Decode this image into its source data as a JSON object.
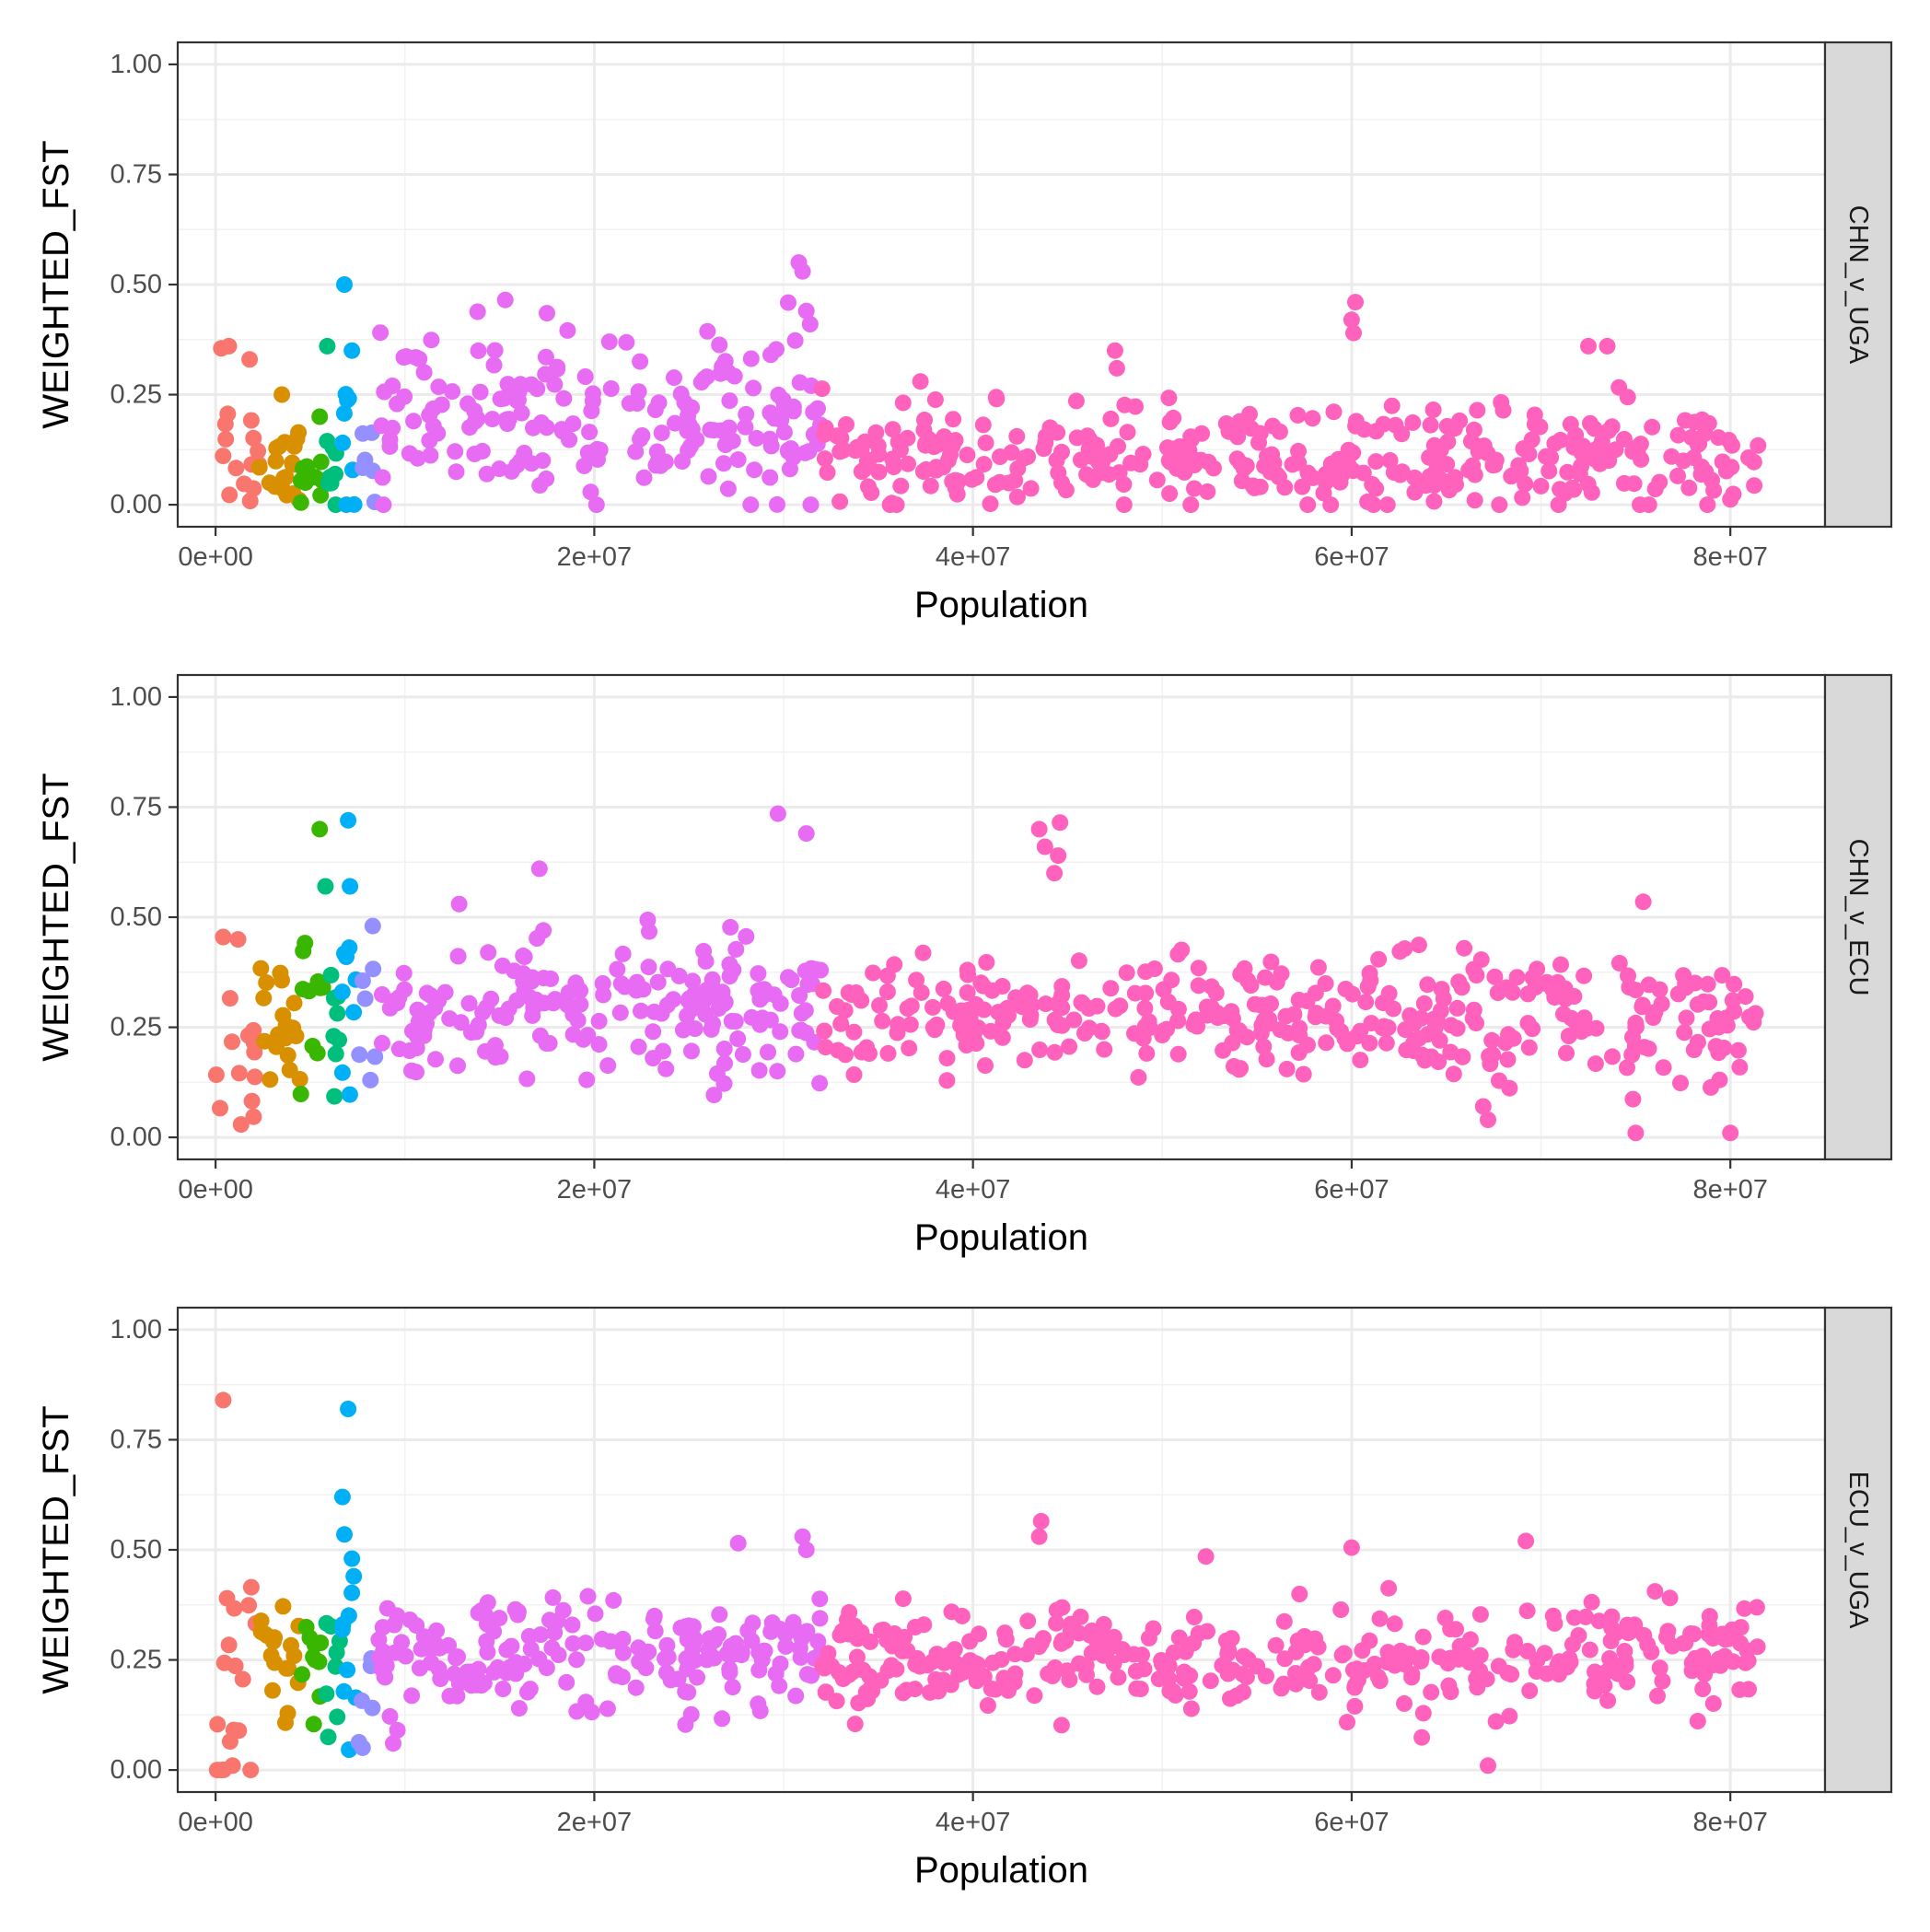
{
  "chart_data": [
    {
      "type": "scatter",
      "facet": "CHN_v_UGA",
      "xlabel": "Population",
      "ylabel": "WEIGHTED_FST",
      "xlim": [
        -2000000,
        85000000
      ],
      "ylim": [
        -0.05,
        1.05
      ],
      "x_ticks": [
        0,
        20000000,
        40000000,
        60000000,
        80000000
      ],
      "x_tick_labels": [
        "0e+00",
        "2e+07",
        "4e+07",
        "6e+07",
        "8e+07"
      ],
      "y_ticks": [
        0,
        0.25,
        0.5,
        0.75,
        1
      ],
      "y_tick_labels": [
        "0.00",
        "0.25",
        "0.50",
        "0.75",
        "1.00"
      ],
      "grid": true,
      "color_by": "chromosome",
      "segments": [
        {
          "x_start": 0,
          "x_end": 2300000,
          "color": "#f8766d",
          "mean": 0.12,
          "sd": 0.07,
          "n": 14
        },
        {
          "x_start": 2300000,
          "x_end": 4500000,
          "color": "#d89000",
          "mean": 0.1,
          "sd": 0.05,
          "n": 18
        },
        {
          "x_start": 4500000,
          "x_end": 5800000,
          "color": "#39b600",
          "mean": 0.07,
          "sd": 0.04,
          "n": 10
        },
        {
          "x_start": 5800000,
          "x_end": 6600000,
          "color": "#00bf7d",
          "mean": 0.09,
          "sd": 0.05,
          "n": 8
        },
        {
          "x_start": 6600000,
          "x_end": 7500000,
          "color": "#00b0f6",
          "mean": 0.12,
          "sd": 0.08,
          "n": 8
        },
        {
          "x_start": 7500000,
          "x_end": 8600000,
          "color": "#9590ff",
          "mean": 0.1,
          "sd": 0.06,
          "n": 6
        },
        {
          "x_start": 8600000,
          "x_end": 32000000,
          "color": "#e76bf3",
          "mean": 0.2,
          "sd": 0.09,
          "n": 190
        },
        {
          "x_start": 32000000,
          "x_end": 81500000,
          "color": "#ff62bc",
          "mean": 0.1,
          "sd": 0.06,
          "n": 360
        }
      ],
      "highlights": [
        {
          "x": 300000,
          "y": 0.355
        },
        {
          "x": 700000,
          "y": 0.36
        },
        {
          "x": 1800000,
          "y": 0.33
        },
        {
          "x": 3500000,
          "y": 0.25
        },
        {
          "x": 5500000,
          "y": 0.2
        },
        {
          "x": 5900000,
          "y": 0.36
        },
        {
          "x": 6800000,
          "y": 0.5
        },
        {
          "x": 7200000,
          "y": 0.35
        },
        {
          "x": 15300000,
          "y": 0.465
        },
        {
          "x": 17500000,
          "y": 0.435
        },
        {
          "x": 30800000,
          "y": 0.55
        },
        {
          "x": 31000000,
          "y": 0.53
        },
        {
          "x": 31200000,
          "y": 0.44
        },
        {
          "x": 31400000,
          "y": 0.41
        },
        {
          "x": 47500000,
          "y": 0.35
        },
        {
          "x": 47600000,
          "y": 0.31
        },
        {
          "x": 60200000,
          "y": 0.46
        },
        {
          "x": 60000000,
          "y": 0.42
        },
        {
          "x": 60100000,
          "y": 0.39
        },
        {
          "x": 72500000,
          "y": 0.36
        },
        {
          "x": 73500000,
          "y": 0.36
        }
      ]
    },
    {
      "type": "scatter",
      "facet": "CHN_v_ECU",
      "xlabel": "Population",
      "ylabel": "WEIGHTED_FST",
      "xlim": [
        -2000000,
        85000000
      ],
      "ylim": [
        -0.05,
        1.05
      ],
      "x_ticks": [
        0,
        20000000,
        40000000,
        60000000,
        80000000
      ],
      "x_tick_labels": [
        "0e+00",
        "2e+07",
        "4e+07",
        "6e+07",
        "8e+07"
      ],
      "y_ticks": [
        0,
        0.25,
        0.5,
        0.75,
        1
      ],
      "y_tick_labels": [
        "0.00",
        "0.25",
        "0.50",
        "0.75",
        "1.00"
      ],
      "grid": true,
      "color_by": "chromosome",
      "segments": [
        {
          "x_start": 0,
          "x_end": 2300000,
          "color": "#f8766d",
          "mean": 0.2,
          "sd": 0.1,
          "n": 14
        },
        {
          "x_start": 2300000,
          "x_end": 4500000,
          "color": "#d89000",
          "mean": 0.25,
          "sd": 0.08,
          "n": 18
        },
        {
          "x_start": 4500000,
          "x_end": 5800000,
          "color": "#39b600",
          "mean": 0.28,
          "sd": 0.1,
          "n": 10
        },
        {
          "x_start": 5800000,
          "x_end": 6600000,
          "color": "#00bf7d",
          "mean": 0.3,
          "sd": 0.1,
          "n": 8
        },
        {
          "x_start": 6600000,
          "x_end": 7500000,
          "color": "#00b0f6",
          "mean": 0.28,
          "sd": 0.1,
          "n": 8
        },
        {
          "x_start": 7500000,
          "x_end": 8600000,
          "color": "#9590ff",
          "mean": 0.25,
          "sd": 0.09,
          "n": 6
        },
        {
          "x_start": 8600000,
          "x_end": 32000000,
          "color": "#e76bf3",
          "mean": 0.29,
          "sd": 0.08,
          "n": 190
        },
        {
          "x_start": 32000000,
          "x_end": 81500000,
          "color": "#ff62bc",
          "mean": 0.27,
          "sd": 0.07,
          "n": 360
        }
      ],
      "highlights": [
        {
          "x": 400000,
          "y": 0.455
        },
        {
          "x": 5500000,
          "y": 0.7
        },
        {
          "x": 5800000,
          "y": 0.57
        },
        {
          "x": 7000000,
          "y": 0.72
        },
        {
          "x": 7100000,
          "y": 0.57
        },
        {
          "x": 8300000,
          "y": 0.48
        },
        {
          "x": 17100000,
          "y": 0.61
        },
        {
          "x": 29700000,
          "y": 0.735
        },
        {
          "x": 31200000,
          "y": 0.69
        },
        {
          "x": 43500000,
          "y": 0.7
        },
        {
          "x": 44600000,
          "y": 0.715
        },
        {
          "x": 43800000,
          "y": 0.66
        },
        {
          "x": 44500000,
          "y": 0.64
        },
        {
          "x": 44300000,
          "y": 0.6
        },
        {
          "x": 75400000,
          "y": 0.535
        },
        {
          "x": 75000000,
          "y": 0.01
        },
        {
          "x": 80000000,
          "y": 0.01
        },
        {
          "x": 67200000,
          "y": 0.04
        }
      ]
    },
    {
      "type": "scatter",
      "facet": "ECU_v_UGA",
      "xlabel": "Population",
      "ylabel": "WEIGHTED_FST",
      "xlim": [
        -2000000,
        85000000
      ],
      "ylim": [
        -0.05,
        1.05
      ],
      "x_ticks": [
        0,
        20000000,
        40000000,
        60000000,
        80000000
      ],
      "x_tick_labels": [
        "0e+00",
        "2e+07",
        "4e+07",
        "6e+07",
        "8e+07"
      ],
      "y_ticks": [
        0,
        0.25,
        0.5,
        0.75,
        1
      ],
      "y_tick_labels": [
        "0.00",
        "0.25",
        "0.50",
        "0.75",
        "1.00"
      ],
      "grid": true,
      "color_by": "chromosome",
      "segments": [
        {
          "x_start": 0,
          "x_end": 2300000,
          "color": "#f8766d",
          "mean": 0.2,
          "sd": 0.1,
          "n": 14
        },
        {
          "x_start": 2300000,
          "x_end": 4500000,
          "color": "#d89000",
          "mean": 0.24,
          "sd": 0.07,
          "n": 18
        },
        {
          "x_start": 4500000,
          "x_end": 5800000,
          "color": "#39b600",
          "mean": 0.22,
          "sd": 0.08,
          "n": 10
        },
        {
          "x_start": 5800000,
          "x_end": 6600000,
          "color": "#00bf7d",
          "mean": 0.22,
          "sd": 0.09,
          "n": 8
        },
        {
          "x_start": 6600000,
          "x_end": 7500000,
          "color": "#00b0f6",
          "mean": 0.3,
          "sd": 0.12,
          "n": 8
        },
        {
          "x_start": 7500000,
          "x_end": 8600000,
          "color": "#9590ff",
          "mean": 0.2,
          "sd": 0.08,
          "n": 6
        },
        {
          "x_start": 8600000,
          "x_end": 32000000,
          "color": "#e76bf3",
          "mean": 0.26,
          "sd": 0.06,
          "n": 190
        },
        {
          "x_start": 32000000,
          "x_end": 81500000,
          "color": "#ff62bc",
          "mean": 0.25,
          "sd": 0.06,
          "n": 360
        }
      ],
      "highlights": [
        {
          "x": 400000,
          "y": 0.84
        },
        {
          "x": 7000000,
          "y": 0.82
        },
        {
          "x": 6700000,
          "y": 0.62
        },
        {
          "x": 6800000,
          "y": 0.535
        },
        {
          "x": 7200000,
          "y": 0.48
        },
        {
          "x": 7300000,
          "y": 0.44
        },
        {
          "x": 600000,
          "y": 0.39
        },
        {
          "x": 300000,
          "y": 0.0
        },
        {
          "x": 900000,
          "y": 0.01
        },
        {
          "x": 27600000,
          "y": 0.515
        },
        {
          "x": 31000000,
          "y": 0.53
        },
        {
          "x": 31200000,
          "y": 0.5
        },
        {
          "x": 43600000,
          "y": 0.565
        },
        {
          "x": 43500000,
          "y": 0.53
        },
        {
          "x": 52300000,
          "y": 0.485
        },
        {
          "x": 60000000,
          "y": 0.505
        },
        {
          "x": 69200000,
          "y": 0.52
        },
        {
          "x": 67200000,
          "y": 0.01
        },
        {
          "x": 83000,
          "y": 0.0
        }
      ]
    }
  ]
}
